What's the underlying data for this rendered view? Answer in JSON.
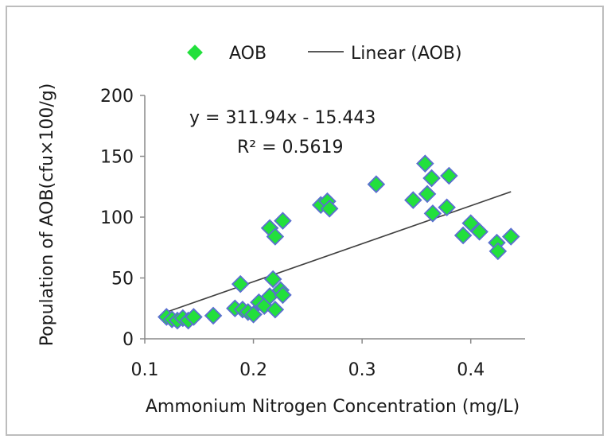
{
  "chart_data": {
    "type": "scatter",
    "xlabel": "Ammonium Nitrogen Concentration (mg/L)",
    "ylabel": "Population of AOB(cfu×100/g)",
    "xlim": [
      0.1,
      0.45
    ],
    "ylim": [
      0,
      200
    ],
    "xticks": [
      0.1,
      0.2,
      0.3,
      0.4
    ],
    "xtick_labels": [
      "0.1",
      "0.2",
      "0.3",
      "0.4"
    ],
    "yticks": [
      0,
      50,
      100,
      150,
      200
    ],
    "ytick_labels": [
      "0",
      "50",
      "100",
      "150",
      "200"
    ],
    "grid": false,
    "legend_position": "top",
    "legend": [
      {
        "label": "AOB",
        "kind": "marker"
      },
      {
        "label": "Linear (AOB)",
        "kind": "line"
      }
    ],
    "annotations": {
      "equation": "y = 311.94x - 15.443",
      "r_squared": "R² = 0.5619"
    },
    "series": [
      {
        "name": "AOB",
        "marker": "diamond",
        "color": "#22e03c",
        "edge_color": "#5b6fd0",
        "points": [
          [
            0.12,
            18
          ],
          [
            0.125,
            16
          ],
          [
            0.13,
            15
          ],
          [
            0.135,
            17
          ],
          [
            0.14,
            15
          ],
          [
            0.145,
            18
          ],
          [
            0.163,
            19
          ],
          [
            0.183,
            25
          ],
          [
            0.188,
            45
          ],
          [
            0.19,
            24
          ],
          [
            0.195,
            22
          ],
          [
            0.2,
            20
          ],
          [
            0.205,
            30
          ],
          [
            0.21,
            27
          ],
          [
            0.215,
            35
          ],
          [
            0.215,
            91
          ],
          [
            0.218,
            49
          ],
          [
            0.22,
            84
          ],
          [
            0.22,
            24
          ],
          [
            0.225,
            40
          ],
          [
            0.227,
            97
          ],
          [
            0.227,
            36
          ],
          [
            0.262,
            110
          ],
          [
            0.268,
            113
          ],
          [
            0.27,
            107
          ],
          [
            0.313,
            127
          ],
          [
            0.347,
            114
          ],
          [
            0.358,
            144
          ],
          [
            0.36,
            119
          ],
          [
            0.364,
            132
          ],
          [
            0.365,
            103
          ],
          [
            0.378,
            108
          ],
          [
            0.38,
            134
          ],
          [
            0.393,
            85
          ],
          [
            0.4,
            95
          ],
          [
            0.408,
            88
          ],
          [
            0.424,
            79
          ],
          [
            0.425,
            72
          ],
          [
            0.437,
            84
          ]
        ]
      }
    ],
    "trendline": {
      "slope": 311.94,
      "intercept": -15.443,
      "x_range": [
        0.12,
        0.437
      ],
      "color": "#404040"
    }
  }
}
